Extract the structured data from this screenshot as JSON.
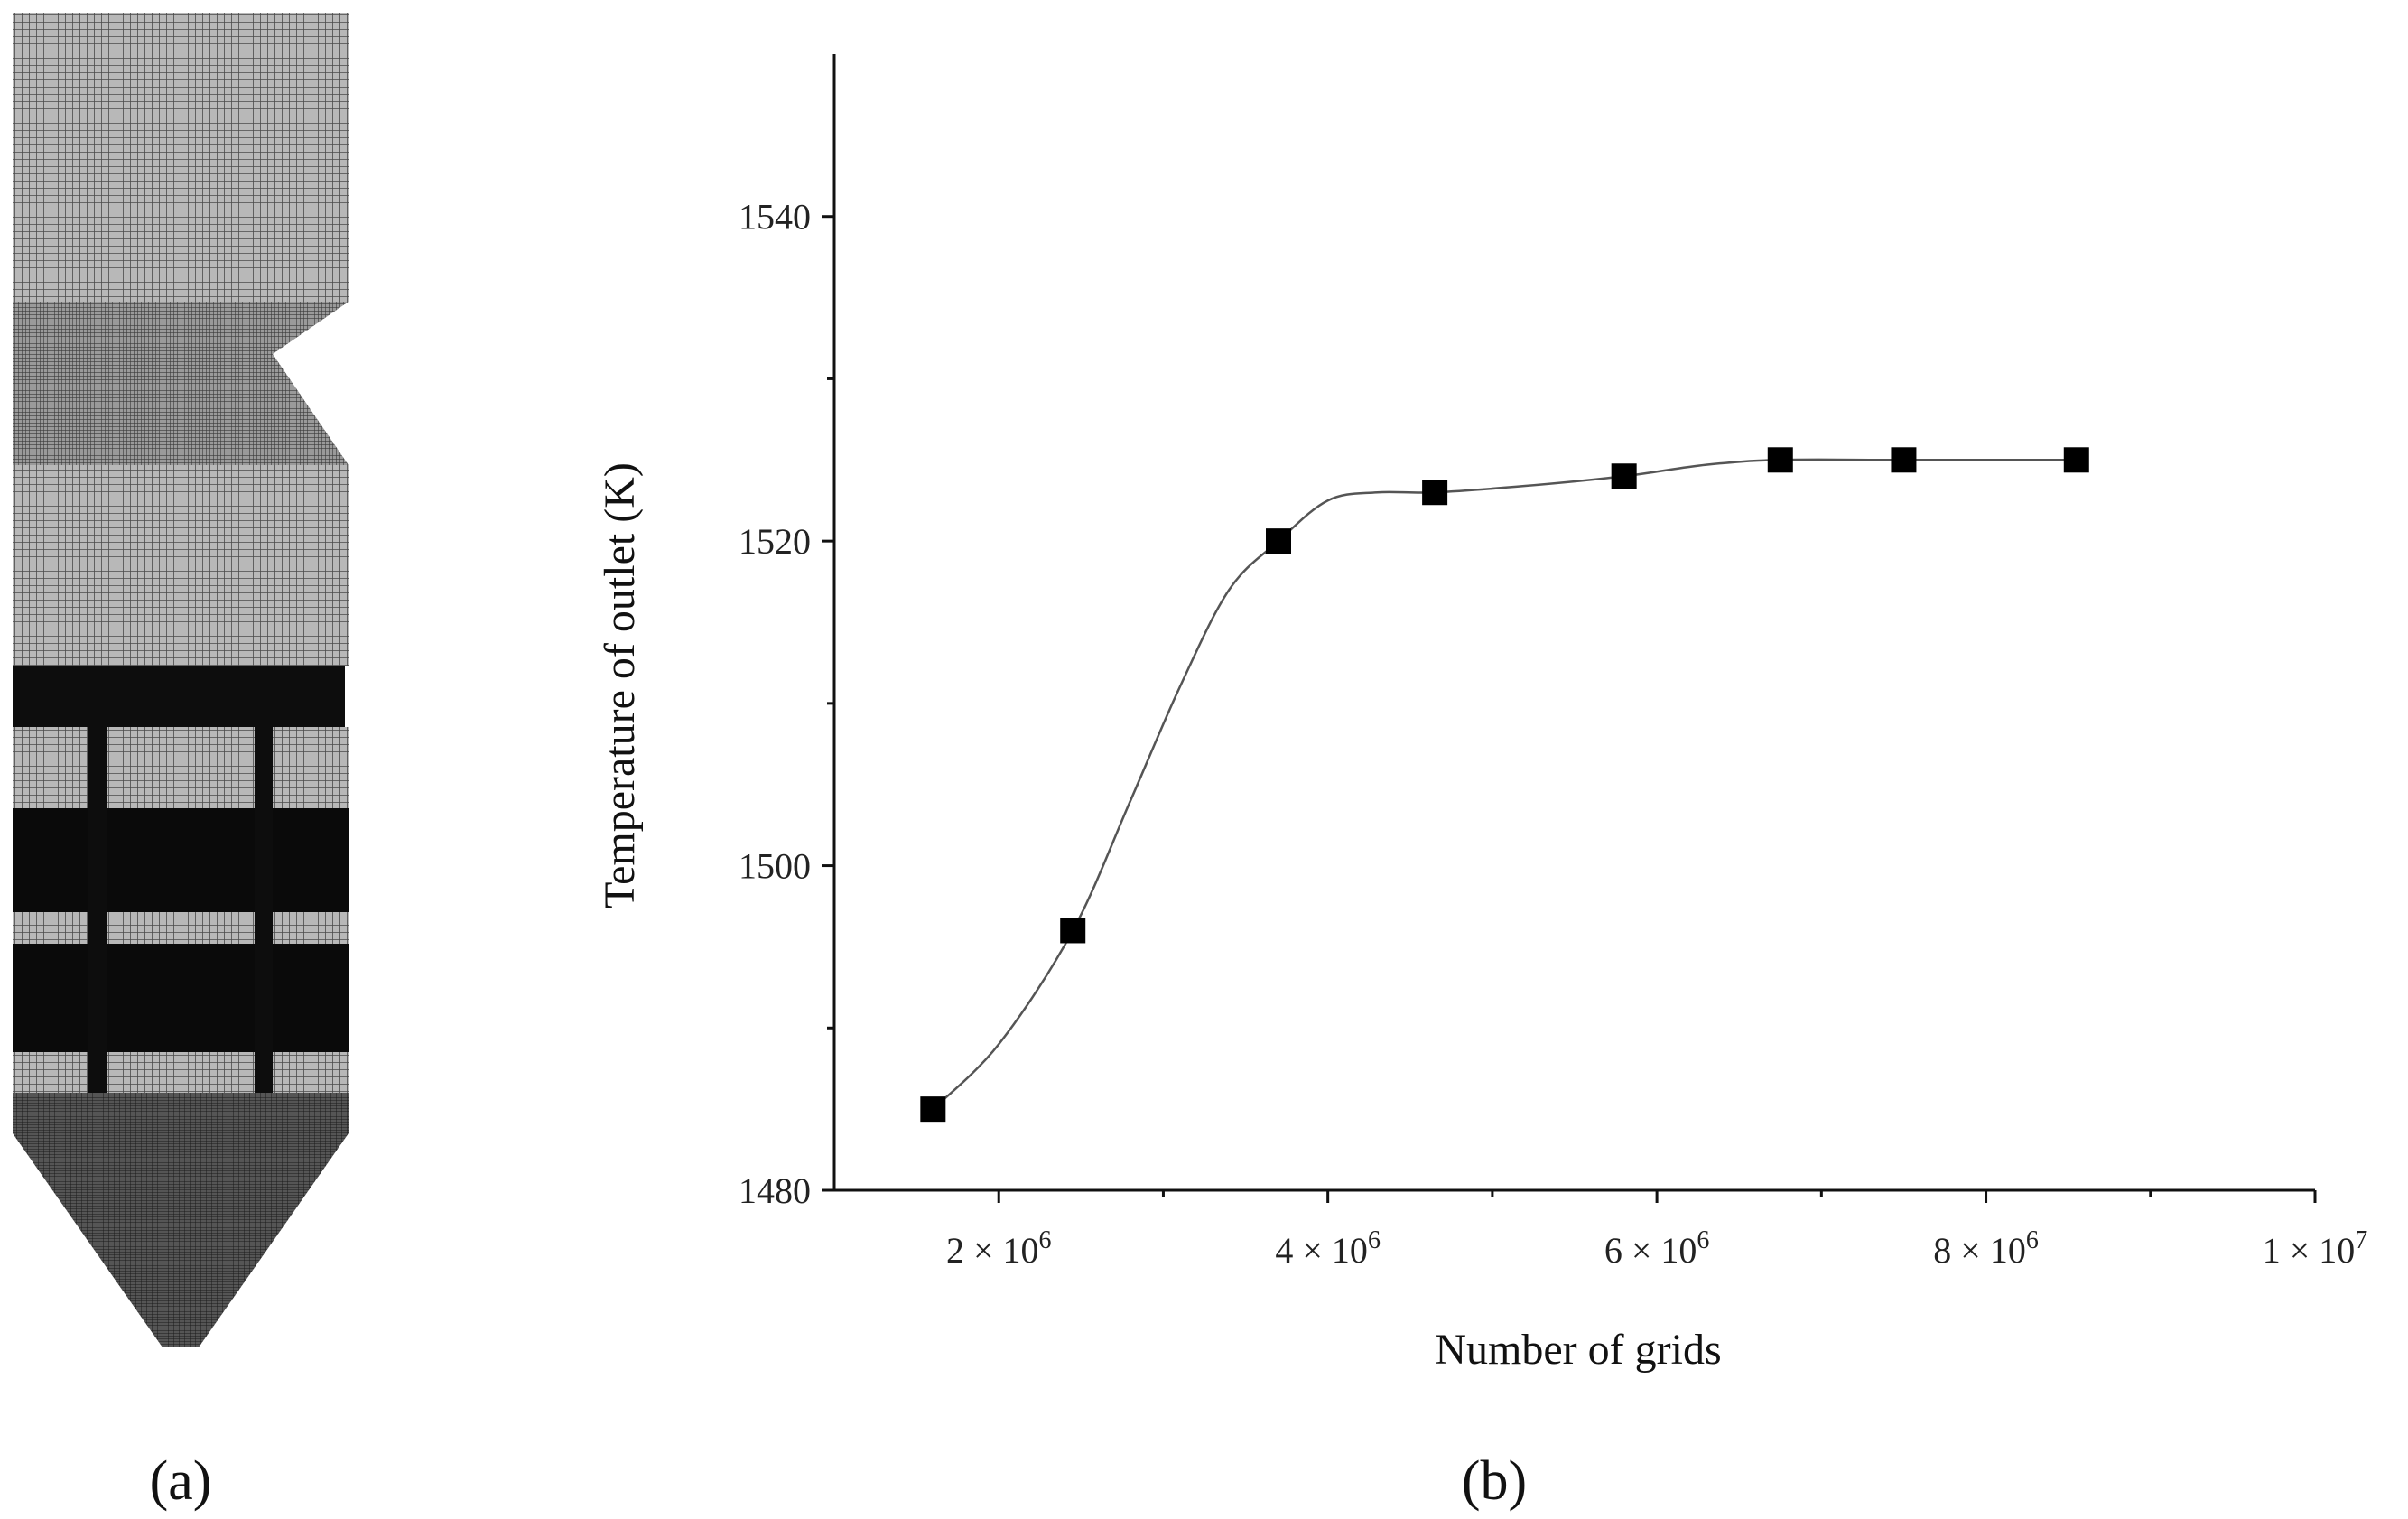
{
  "panels": {
    "left_label": "(a)",
    "right_label": "(b)"
  },
  "mesh_image": {
    "subject": "computational mesh of furnace geometry",
    "colors": {
      "mesh_fine": "#6a6a6a",
      "mesh_dense": "#0d0d0d",
      "mesh_light": "#8a8a8a"
    }
  },
  "chart_data": {
    "type": "line",
    "title": "",
    "xlabel": "Number of grids",
    "ylabel": "Temperature of outlet (K)",
    "xlim": [
      1000000,
      10000000
    ],
    "ylim": [
      1480,
      1550
    ],
    "x_ticks": [
      {
        "value": 2000000,
        "mantissa": "2 × 10",
        "exponent": "6"
      },
      {
        "value": 4000000,
        "mantissa": "4 × 10",
        "exponent": "6"
      },
      {
        "value": 6000000,
        "mantissa": "6 × 10",
        "exponent": "6"
      },
      {
        "value": 8000000,
        "mantissa": "8 × 10",
        "exponent": "6"
      },
      {
        "value": 10000000,
        "mantissa": "1 × 10",
        "exponent": "7"
      }
    ],
    "x_minor_ticks": [
      3000000,
      5000000,
      7000000,
      9000000
    ],
    "y_ticks": [
      {
        "value": 1480,
        "label": "1480"
      },
      {
        "value": 1500,
        "label": "1500"
      },
      {
        "value": 1520,
        "label": "1520"
      },
      {
        "value": 1540,
        "label": "1540"
      }
    ],
    "y_minor_ticks": [
      1490,
      1510,
      1530
    ],
    "series": [
      {
        "name": "Temperature of outlet",
        "marker": "square",
        "x": [
          1600000,
          2450000,
          3700000,
          4650000,
          5800000,
          6750000,
          7500000,
          8550000
        ],
        "values": [
          1485,
          1496,
          1520,
          1523,
          1524,
          1525,
          1525,
          1525
        ]
      }
    ],
    "fit_curve": {
      "x": [
        1600000,
        2000000,
        2450000,
        2800000,
        3100000,
        3400000,
        3700000,
        4000000,
        4300000,
        4650000,
        5200000,
        5800000,
        6300000,
        6750000,
        7500000,
        8550000
      ],
      "values": [
        1485,
        1489,
        1496,
        1504,
        1511,
        1517,
        1520,
        1522.5,
        1523,
        1523,
        1523.4,
        1524,
        1524.7,
        1525,
        1525,
        1525
      ]
    },
    "grid": false,
    "legend": "none"
  }
}
